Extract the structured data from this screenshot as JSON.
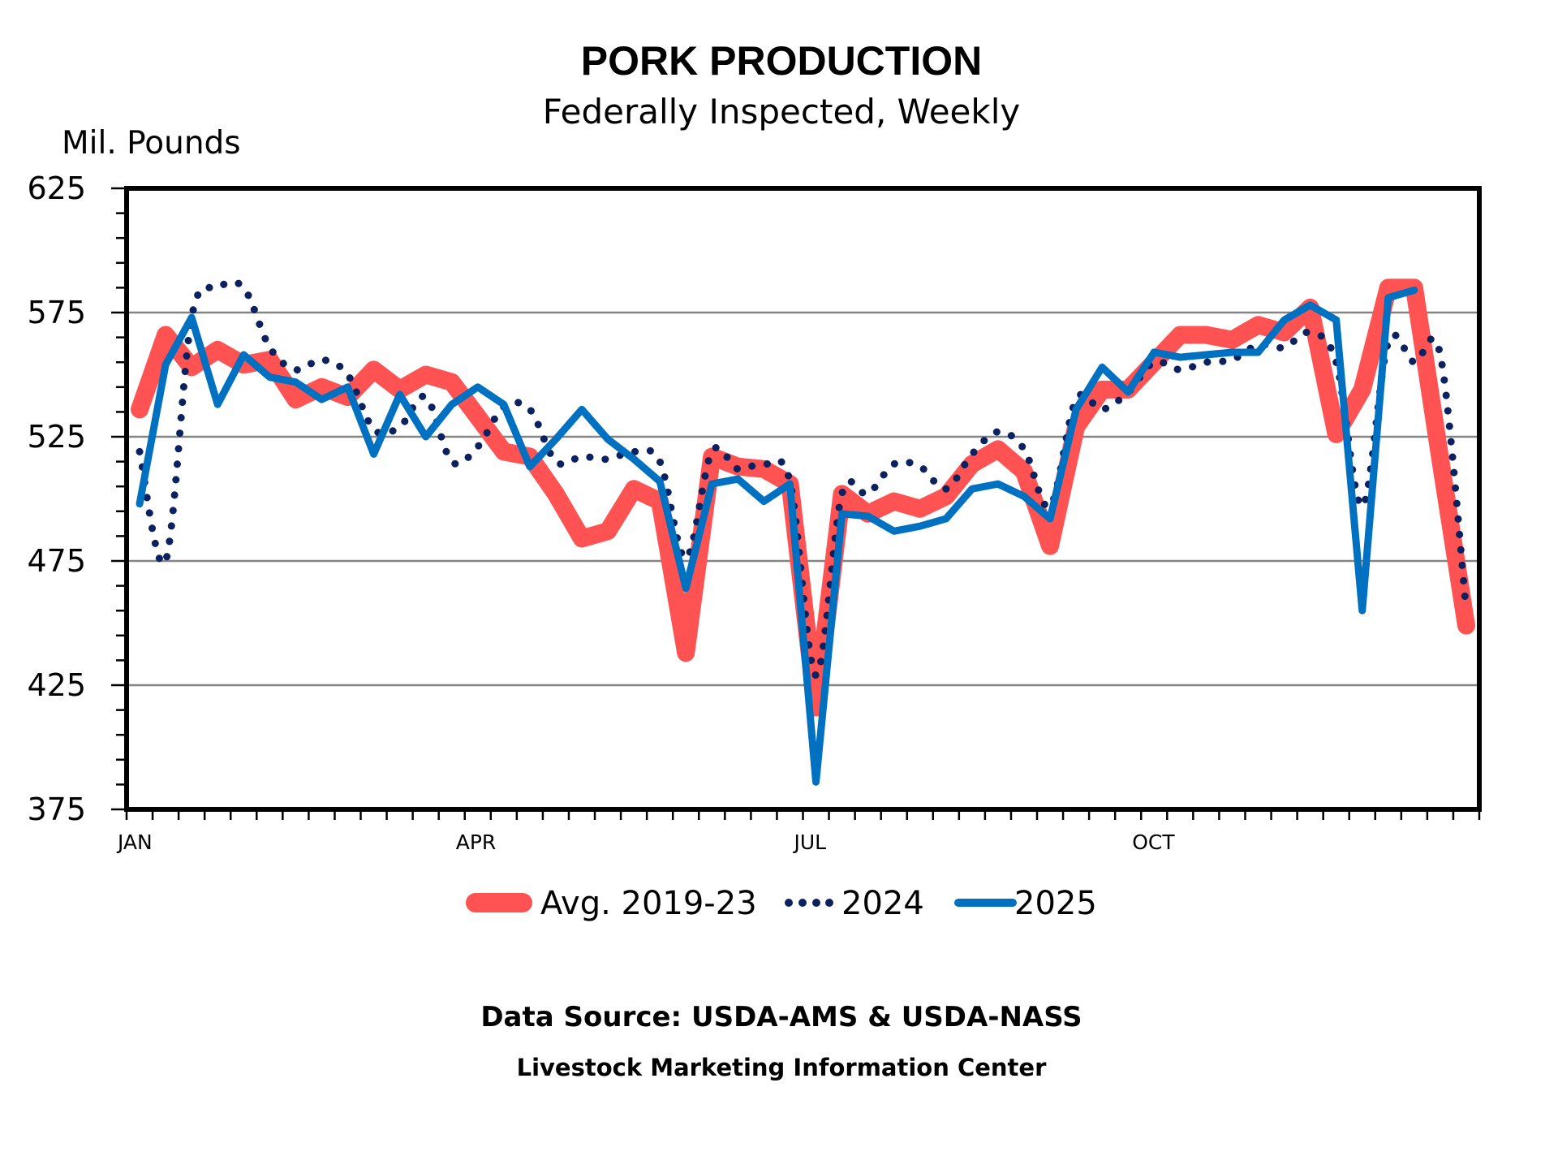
{
  "chart_data": {
    "type": "line",
    "title": "PORK PRODUCTION",
    "subtitle": "Federally Inspected, Weekly",
    "ylabel": "Mil. Pounds",
    "xlabel": "",
    "ylim": [
      375,
      625
    ],
    "y_ticks": [
      "625",
      "575",
      "525",
      "475",
      "425",
      "375"
    ],
    "y_tick_values": [
      625,
      575,
      525,
      475,
      425,
      375
    ],
    "y_minor_step": 10,
    "x_weeks": 52,
    "x_tick_labels": [
      {
        "label": "JAN",
        "week": 0
      },
      {
        "label": "APR",
        "week": 13
      },
      {
        "label": "JUL",
        "week": 26
      },
      {
        "label": "OCT",
        "week": 39
      }
    ],
    "grid": true,
    "gridline_values": [
      575,
      525,
      475,
      425
    ],
    "legend_position": "bottom",
    "series": [
      {
        "name": "Avg. 2019-23",
        "style": "thick-solid",
        "color": "#FF5353",
        "values": [
          536,
          566,
          553,
          560,
          554,
          556,
          540,
          545,
          541,
          552,
          544,
          550,
          547,
          533,
          519,
          517,
          502,
          484,
          487,
          504,
          499,
          438,
          517,
          513,
          512,
          506,
          416,
          502,
          494,
          499,
          496,
          501,
          514,
          520,
          511,
          481,
          529,
          544,
          544,
          555,
          566,
          566,
          564,
          570,
          567,
          577,
          526,
          544,
          585,
          585,
          516,
          449
        ]
      },
      {
        "name": "2024",
        "style": "dotted-smooth",
        "color": "#0B2160",
        "values": [
          519,
          475,
          573,
          585,
          585,
          561,
          552,
          556,
          550,
          528,
          529,
          541,
          515,
          521,
          537,
          536,
          515,
          517,
          516,
          519,
          515,
          476,
          519,
          512,
          514,
          507,
          429,
          502,
          502,
          514,
          513,
          504,
          518,
          527,
          520,
          497,
          540,
          536,
          543,
          555,
          552,
          555,
          556,
          562,
          561,
          567,
          555,
          497,
          563,
          555,
          558,
          455
        ]
      },
      {
        "name": "2025",
        "style": "solid",
        "color": "#0070C0",
        "values": [
          498,
          554,
          573,
          538,
          558,
          549,
          547,
          540,
          545,
          518,
          542,
          525,
          538,
          545,
          538,
          513,
          524,
          536,
          524,
          516,
          507,
          464,
          506,
          508,
          499,
          506,
          386,
          494,
          493,
          487,
          489,
          492,
          504,
          506,
          501,
          492,
          536,
          553,
          543,
          559,
          557,
          558,
          559,
          559,
          572,
          578,
          572,
          455,
          581,
          584
        ]
      }
    ]
  },
  "footer": {
    "source": "Data Source:  USDA-AMS & USDA-NASS",
    "org": "Livestock Marketing Information Center"
  }
}
